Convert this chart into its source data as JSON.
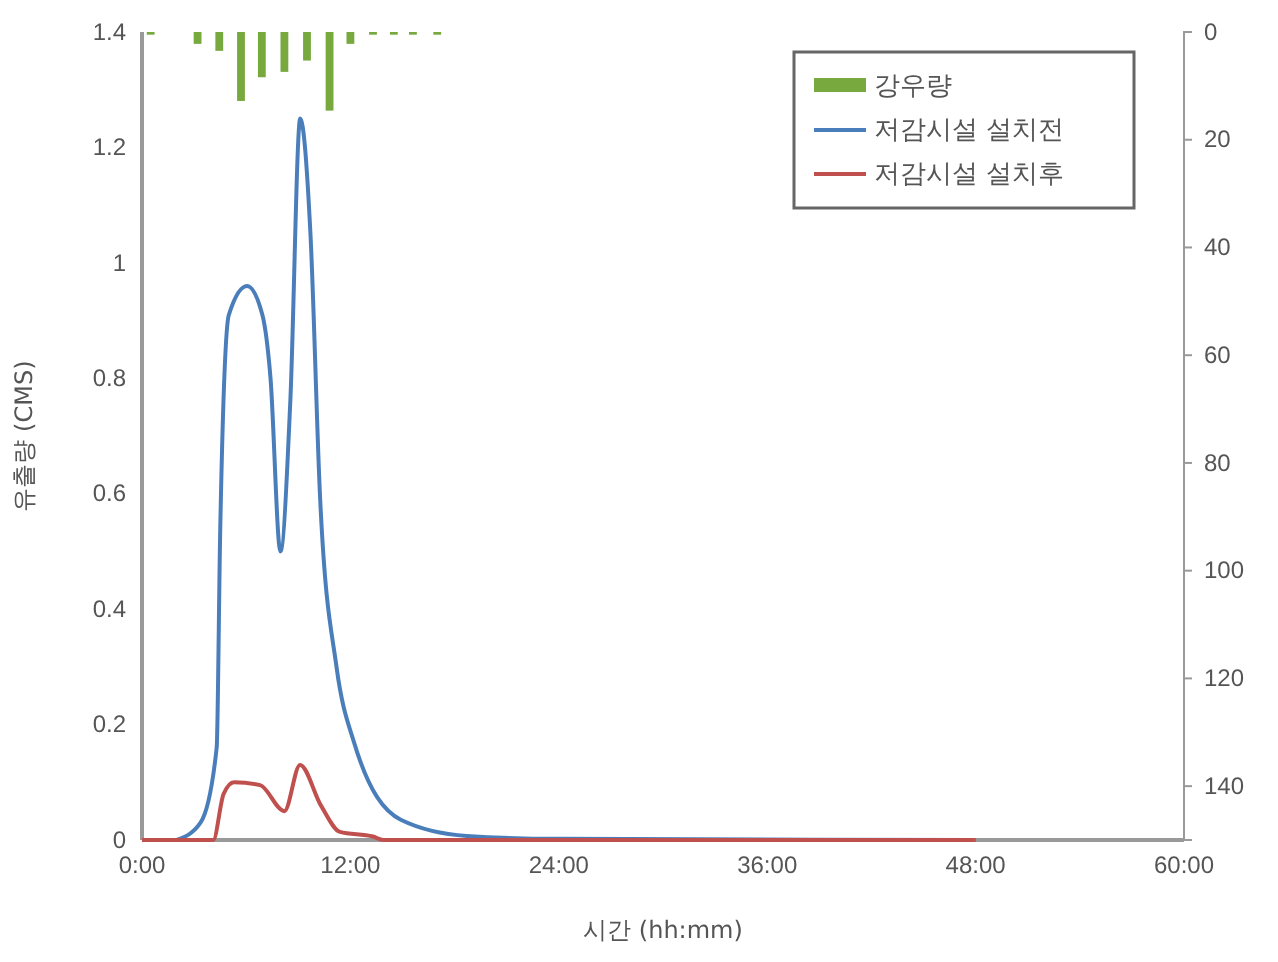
{
  "chart_data": {
    "type": "line",
    "xlabel": "시간 (hh:mm)",
    "ylabel": "유출량 (CMS)",
    "xlim": [
      0,
      60
    ],
    "xticks": [
      {
        "value": 0,
        "label": "0:00"
      },
      {
        "value": 12,
        "label": "12:00"
      },
      {
        "value": 24,
        "label": "24:00"
      },
      {
        "value": 36,
        "label": "36:00"
      },
      {
        "value": 48,
        "label": "48:00"
      },
      {
        "value": 60,
        "label": "60:00"
      }
    ],
    "ylim": [
      0,
      1.4
    ],
    "yticks": [
      0,
      0.2,
      0.4,
      0.6,
      0.8,
      1,
      1.2,
      1.4
    ],
    "y2lim": [
      150,
      0
    ],
    "y2ticks": [
      0,
      20,
      40,
      60,
      80,
      100,
      120,
      140
    ],
    "legend": "top right",
    "grid": false,
    "series": [
      {
        "name": "강우량",
        "type": "bar",
        "axis": "y2",
        "color": "#77a93e",
        "x": [
          0.5,
          3.2,
          4.45,
          5.7,
          6.9,
          8.2,
          9.5,
          10.8,
          12,
          13.3,
          14.5,
          15.6,
          17
        ],
        "values": [
          0.5,
          2.2,
          3.5,
          12.8,
          8.4,
          7.4,
          5.3,
          14.6,
          2.2,
          0.5,
          0.5,
          0.5,
          0.5
        ]
      },
      {
        "name": "저감시설 설치전",
        "color": "#4a7ebb",
        "x": [
          2,
          3.37,
          4.3,
          4.5,
          5,
          6.05,
          6.93,
          7.4,
          7.97,
          8.54,
          9.11,
          9.7,
          10.26,
          11.2,
          12.2,
          14.9,
          18.7,
          24,
          48
        ],
        "values": [
          0,
          0.03,
          0.16,
          0.53,
          0.91,
          0.96,
          0.91,
          0.8,
          0.5,
          0.76,
          1.25,
          1.05,
          0.59,
          0.3,
          0.17,
          0.035,
          0.007,
          0.002,
          0
        ]
      },
      {
        "name": "저감시설 설치후",
        "color": "#c0504d",
        "x": [
          0,
          4.1,
          4.7,
          5.3,
          6.8,
          8.2,
          9.1,
          10.3,
          11.4,
          13.3,
          13.9,
          48
        ],
        "values": [
          0,
          0,
          0.08,
          0.1,
          0.095,
          0.05,
          0.13,
          0.06,
          0.014,
          0.006,
          0,
          0
        ]
      }
    ]
  }
}
